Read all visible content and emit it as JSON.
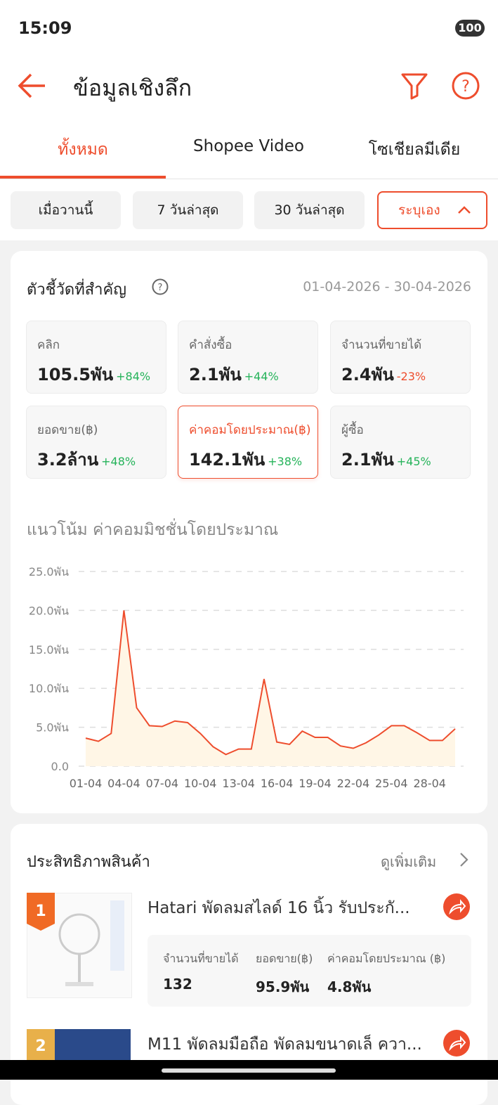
{
  "status_bar": {
    "time": "15:09",
    "battery": "100"
  },
  "header": {
    "title": "ข้อมูลเชิงลึก"
  },
  "tabs": [
    "ทั้งหมด",
    "Shopee Video",
    "โซเชียลมีเดีย"
  ],
  "filters": [
    "เมื่อวานนี้",
    "7 วันล่าสุด",
    "30 วันล่าสุด",
    "ระบุเอง"
  ],
  "metrics": {
    "title": "ตัวชี้วัดที่สำคัญ",
    "date_range": "01-04-2026 - 30-04-2026",
    "cards": [
      {
        "label": "คลิก",
        "value": "105.5พัน",
        "change": "+84%"
      },
      {
        "label": "คำสั่งซื้อ",
        "value": "2.1พัน",
        "change": "+44%"
      },
      {
        "label": "จำนวนที่ขายได้",
        "value": "2.4พัน",
        "change": "-23%"
      },
      {
        "label": "ยอดขาย(฿)",
        "value": "3.2ล้าน",
        "change": "+48%"
      },
      {
        "label": "ค่าคอมโดยประมาณ(฿)",
        "value": "142.1พัน",
        "change": "+38%"
      },
      {
        "label": "ผู้ซื้อ",
        "value": "2.1พัน",
        "change": "+45%"
      }
    ]
  },
  "chart_data": {
    "type": "line",
    "title": "แนวโน้ม ค่าคอมมิชชั่นโดยประมาณ",
    "categories": [
      "01-04",
      null,
      null,
      "04-04",
      null,
      null,
      "07-04",
      null,
      null,
      "10-04",
      null,
      null,
      "13-04",
      null,
      null,
      "16-04",
      null,
      null,
      "19-04",
      null,
      null,
      "22-04",
      null,
      null,
      "25-04",
      null,
      null,
      "28-04",
      null,
      null
    ],
    "values": [
      3.6,
      3.2,
      4.2,
      20.0,
      7.5,
      5.2,
      5.1,
      5.8,
      5.6,
      4.2,
      2.5,
      1.5,
      2.2,
      2.2,
      11.2,
      3.1,
      2.8,
      4.5,
      3.7,
      3.7,
      2.6,
      2.3,
      3.0,
      4.0,
      5.2,
      5.2,
      4.3,
      3.3,
      3.3,
      4.8
    ],
    "color": "#ee4d2d",
    "area": true,
    "ylim": [
      0,
      25
    ],
    "yticks": [
      {
        "value": 0,
        "label": "0.0"
      },
      {
        "value": 5,
        "label": "5.0พัน"
      },
      {
        "value": 10,
        "label": "10.0พัน"
      },
      {
        "value": 15,
        "label": "15.0พัน"
      },
      {
        "value": 20,
        "label": "20.0พัน"
      },
      {
        "value": 25,
        "label": "25.0พัน"
      }
    ],
    "grid": true
  },
  "products": {
    "title": "ประสิทธิภาพสินค้า",
    "more": "ดูเพิ่มเติม",
    "columns": [
      "จำนวนที่ขายได้",
      "ยอดขาย(฿)",
      "ค่าคอมโดยประมาณ (฿)"
    ],
    "items": [
      {
        "rank": "1",
        "name": "Hatari  พัดลมสไลด์ 16 นิ้ว รับประกั...",
        "stats": [
          "132",
          "95.9พัน",
          "4.8พัน"
        ]
      },
      {
        "rank": "2",
        "name": "M11 พัดลมมือถือ พัดลมขนาดเล็ ควา..."
      }
    ]
  }
}
